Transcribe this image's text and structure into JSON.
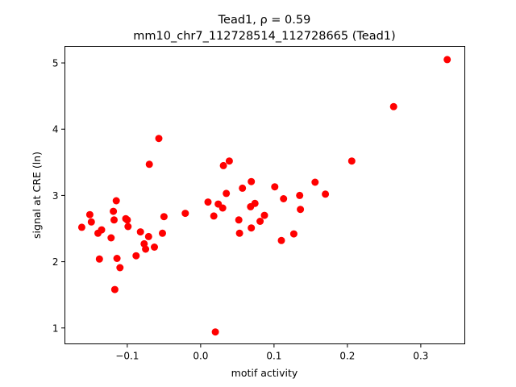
{
  "chart_data": {
    "type": "scatter",
    "title_line1": "Tead1, ρ = 0.59",
    "title_line2": "mm10_chr7_112728514_112728665 (Tead1)",
    "xlabel": "motif activity",
    "ylabel": "signal at CRE (ln)",
    "xlim": [
      -0.185,
      0.36
    ],
    "ylim": [
      0.76,
      5.25
    ],
    "xticks": [
      -0.1,
      0.0,
      0.1,
      0.2,
      0.3
    ],
    "xtick_labels": [
      "−0.1",
      "0.0",
      "0.1",
      "0.2",
      "0.3"
    ],
    "yticks": [
      1,
      2,
      3,
      4,
      5
    ],
    "ytick_labels": [
      "1",
      "2",
      "3",
      "4",
      "5"
    ],
    "grid": false,
    "marker_color": "#ff0000",
    "points": [
      {
        "x": -0.162,
        "y": 2.52
      },
      {
        "x": -0.151,
        "y": 2.71
      },
      {
        "x": -0.149,
        "y": 2.6
      },
      {
        "x": -0.14,
        "y": 2.43
      },
      {
        "x": -0.138,
        "y": 2.04
      },
      {
        "x": -0.135,
        "y": 2.48
      },
      {
        "x": -0.122,
        "y": 2.36
      },
      {
        "x": -0.119,
        "y": 2.76
      },
      {
        "x": -0.118,
        "y": 2.63
      },
      {
        "x": -0.117,
        "y": 1.58
      },
      {
        "x": -0.115,
        "y": 2.92
      },
      {
        "x": -0.114,
        "y": 2.05
      },
      {
        "x": -0.11,
        "y": 1.91
      },
      {
        "x": -0.102,
        "y": 2.65
      },
      {
        "x": -0.1,
        "y": 2.63
      },
      {
        "x": -0.099,
        "y": 2.53
      },
      {
        "x": -0.088,
        "y": 2.09
      },
      {
        "x": -0.082,
        "y": 2.45
      },
      {
        "x": -0.077,
        "y": 2.27
      },
      {
        "x": -0.075,
        "y": 2.19
      },
      {
        "x": -0.071,
        "y": 2.38
      },
      {
        "x": -0.07,
        "y": 3.47
      },
      {
        "x": -0.063,
        "y": 2.22
      },
      {
        "x": -0.057,
        "y": 3.86
      },
      {
        "x": -0.052,
        "y": 2.43
      },
      {
        "x": -0.05,
        "y": 2.68
      },
      {
        "x": -0.021,
        "y": 2.73
      },
      {
        "x": 0.01,
        "y": 2.9
      },
      {
        "x": 0.018,
        "y": 2.69
      },
      {
        "x": 0.02,
        "y": 0.94
      },
      {
        "x": 0.024,
        "y": 2.87
      },
      {
        "x": 0.03,
        "y": 2.81
      },
      {
        "x": 0.031,
        "y": 3.45
      },
      {
        "x": 0.035,
        "y": 3.03
      },
      {
        "x": 0.039,
        "y": 3.52
      },
      {
        "x": 0.052,
        "y": 2.63
      },
      {
        "x": 0.053,
        "y": 2.43
      },
      {
        "x": 0.057,
        "y": 3.11
      },
      {
        "x": 0.068,
        "y": 2.83
      },
      {
        "x": 0.069,
        "y": 2.51
      },
      {
        "x": 0.069,
        "y": 3.21
      },
      {
        "x": 0.074,
        "y": 2.88
      },
      {
        "x": 0.081,
        "y": 2.61
      },
      {
        "x": 0.087,
        "y": 2.7
      },
      {
        "x": 0.101,
        "y": 3.13
      },
      {
        "x": 0.11,
        "y": 2.32
      },
      {
        "x": 0.113,
        "y": 2.95
      },
      {
        "x": 0.127,
        "y": 2.42
      },
      {
        "x": 0.135,
        "y": 3.0
      },
      {
        "x": 0.136,
        "y": 2.79
      },
      {
        "x": 0.156,
        "y": 3.2
      },
      {
        "x": 0.17,
        "y": 3.02
      },
      {
        "x": 0.206,
        "y": 3.52
      },
      {
        "x": 0.263,
        "y": 4.34
      },
      {
        "x": 0.336,
        "y": 5.05
      }
    ]
  }
}
